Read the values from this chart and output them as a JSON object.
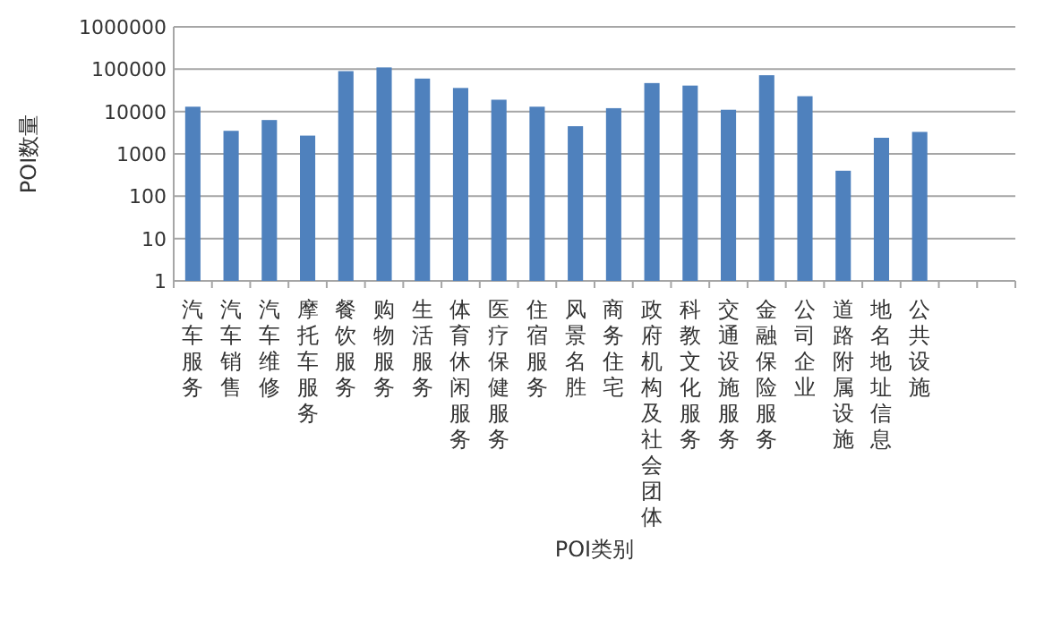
{
  "chart_data": {
    "type": "bar",
    "xlabel": "POI类别",
    "ylabel": "POI数量",
    "categories": [
      "汽车服务",
      "汽车销售",
      "汽车维修",
      "摩托车服务",
      "餐饮服务",
      "购物服务",
      "生活服务",
      "体育休闲服务",
      "医疗保健服务",
      "住宿服务",
      "风景名胜",
      "商务住宅",
      "政府机构及社会团体",
      "科教文化服务",
      "交通设施服务",
      "金融保险服务",
      "公司企业",
      "道路附属设施",
      "地名地址信息",
      "公共设施",
      null,
      null
    ],
    "values": [
      13000,
      3500,
      6300,
      2700,
      90000,
      110000,
      60000,
      36000,
      19000,
      13000,
      4500,
      12000,
      47000,
      41000,
      11000,
      72000,
      23000,
      400,
      2400,
      3300,
      null,
      null
    ],
    "color": "#4f81bd",
    "log": true,
    "ylim": [
      1,
      1000000
    ],
    "yticks": [
      1,
      10,
      100,
      1000,
      10000,
      100000,
      1000000
    ],
    "grid": "y"
  }
}
